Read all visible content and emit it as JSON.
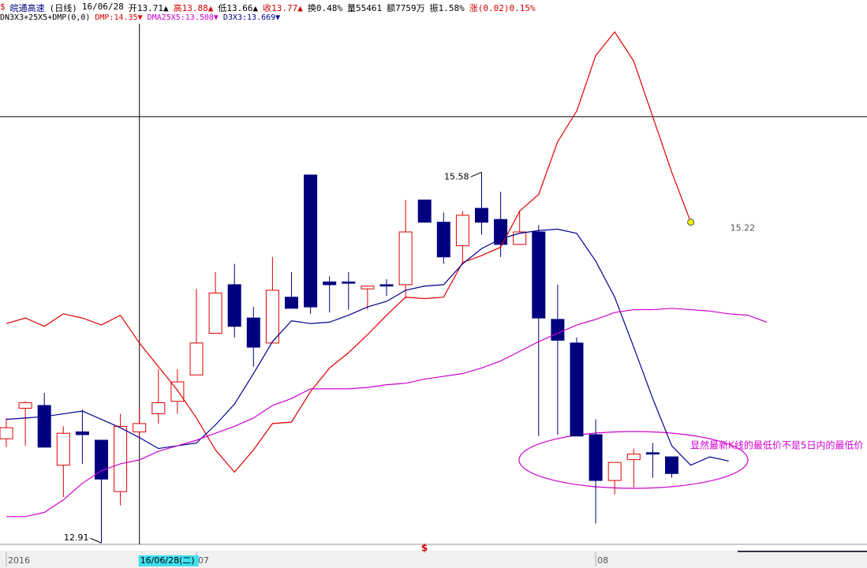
{
  "chart_data": {
    "type": "candlestick",
    "header": [
      {
        "text": "$",
        "color": "#d00000"
      },
      {
        "text": "皖通高速",
        "color": "#000080"
      },
      {
        "text": "(日线)",
        "color": "#000000"
      },
      {
        "text": "16/06/28",
        "color": "#000000"
      },
      {
        "text": "开13.71▲",
        "color": "#000000"
      },
      {
        "text": "高13.88▲",
        "color": "#d00000"
      },
      {
        "text": "低13.66▲",
        "color": "#000000"
      },
      {
        "text": "收13.77▲",
        "color": "#d00000"
      },
      {
        "text": "换0.48%",
        "color": "#000000"
      },
      {
        "text": "量55461",
        "color": "#000000"
      },
      {
        "text": "额7759万",
        "color": "#000000"
      },
      {
        "text": "振1.58%",
        "color": "#000000"
      },
      {
        "text": "涨(0.02)0.15%",
        "color": "#d00000"
      }
    ],
    "indicator_line": [
      {
        "text": "DN3X3+25X5+DMP(0,0)",
        "color": "#000000"
      },
      {
        "text": "DMP:14.35▼",
        "color": "#e00000"
      },
      {
        "text": "DMA25X5:13.508▼",
        "color": "#d000d0"
      },
      {
        "text": "D3X3:13.669▼",
        "color": "#000090"
      }
    ],
    "categories": [
      "2016",
      null,
      null,
      null,
      null,
      null,
      null,
      null,
      null,
      null,
      "07",
      null,
      null,
      null,
      null,
      null,
      null,
      null,
      null,
      null,
      null,
      null,
      null,
      null,
      null,
      null,
      null,
      null,
      null,
      null,
      null,
      "08",
      null,
      null,
      null,
      null,
      null,
      null,
      null,
      null,
      null
    ],
    "ylim": [
      12.9,
      16.65
    ],
    "up_color": "#e00000",
    "down_color": "#00007f",
    "open": [
      13.66,
      13.88,
      13.9,
      13.47,
      13.71,
      13.65,
      13.28,
      13.71,
      13.84,
      13.93,
      14.12,
      14.42,
      14.77,
      14.53,
      14.35,
      14.68,
      15.56,
      14.79,
      14.79,
      14.74,
      14.77,
      14.77,
      15.38,
      15.22,
      15.05,
      15.32,
      15.24,
      15.06,
      15.15,
      14.52,
      14.35,
      13.69,
      13.36,
      13.51,
      13.56,
      13.53,
      null,
      null,
      null,
      null,
      null
    ],
    "high": [
      13.81,
      13.93,
      13.99,
      13.75,
      13.87,
      13.65,
      13.84,
      13.88,
      14.16,
      14.16,
      14.74,
      14.86,
      14.92,
      14.61,
      14.97,
      14.86,
      15.56,
      14.83,
      14.86,
      14.76,
      14.81,
      15.38,
      15.38,
      15.29,
      15.3,
      15.58,
      15.44,
      15.3,
      15.2,
      14.77,
      14.39,
      13.8,
      13.49,
      13.59,
      13.63,
      13.53,
      null,
      null,
      null,
      null,
      null
    ],
    "low": [
      13.6,
      13.61,
      13.6,
      13.24,
      13.48,
      12.91,
      13.18,
      13.66,
      13.77,
      13.84,
      14.12,
      14.42,
      14.39,
      14.18,
      14.35,
      14.6,
      14.56,
      14.57,
      14.59,
      14.59,
      14.69,
      14.67,
      15.22,
      14.92,
      14.93,
      15.13,
      14.97,
      15.06,
      13.68,
      13.69,
      13.68,
      13.05,
      13.26,
      13.31,
      13.38,
      13.38,
      null,
      null,
      null,
      null,
      null
    ],
    "close": [
      13.74,
      13.92,
      13.6,
      13.7,
      13.69,
      13.37,
      13.75,
      13.77,
      13.92,
      14.07,
      14.35,
      14.71,
      14.47,
      14.32,
      14.73,
      14.6,
      14.61,
      14.77,
      14.78,
      14.76,
      14.76,
      15.15,
      15.22,
      14.97,
      15.27,
      15.22,
      15.06,
      15.15,
      14.53,
      14.37,
      13.68,
      13.36,
      13.49,
      13.55,
      13.55,
      13.41,
      null,
      null,
      null,
      null,
      null
    ],
    "series": [
      {
        "name": "DMP",
        "color": "#e00000",
        "end_label": "15.22",
        "values": [
          14.49,
          14.53,
          14.47,
          14.56,
          14.53,
          14.48,
          14.55,
          14.35,
          14.18,
          14.01,
          13.81,
          13.58,
          13.42,
          13.58,
          13.77,
          13.78,
          14.0,
          14.17,
          14.28,
          14.41,
          14.55,
          14.68,
          14.67,
          14.68,
          14.93,
          14.98,
          15.04,
          15.3,
          15.42,
          15.8,
          16.02,
          16.42,
          16.59,
          16.38,
          15.98,
          15.58,
          15.22,
          null,
          null,
          null,
          null
        ]
      },
      {
        "name": "D3X3",
        "color": "#000090",
        "values": [
          13.8,
          13.81,
          13.82,
          13.84,
          13.86,
          13.8,
          13.74,
          13.669,
          13.59,
          13.61,
          13.63,
          13.76,
          13.91,
          14.13,
          14.36,
          14.51,
          14.49,
          14.5,
          14.55,
          14.61,
          14.65,
          14.73,
          14.76,
          14.77,
          14.92,
          15.03,
          15.1,
          15.14,
          15.16,
          15.17,
          15.14,
          14.94,
          14.68,
          14.32,
          13.95,
          13.61,
          13.47,
          13.53,
          13.5,
          null,
          null
        ]
      },
      {
        "name": "DMA25X5",
        "color": "#d000d0",
        "values": [
          13.1,
          13.1,
          13.13,
          13.22,
          13.34,
          13.43,
          13.48,
          13.508,
          13.57,
          13.61,
          13.65,
          13.7,
          13.75,
          13.81,
          13.9,
          13.95,
          14.02,
          14.02,
          14.02,
          14.03,
          14.05,
          14.06,
          14.09,
          14.11,
          14.13,
          14.17,
          14.22,
          14.29,
          14.36,
          14.42,
          14.48,
          14.52,
          14.57,
          14.59,
          14.59,
          14.6,
          14.59,
          14.58,
          14.56,
          14.55,
          14.5
        ]
      }
    ],
    "max_label": {
      "text": "15.58",
      "index": 25
    },
    "min_label": {
      "text": "12.91",
      "index": 5
    },
    "crosshair": {
      "index": 7,
      "value": 15.98,
      "label": "16/06/28(二)"
    },
    "axis_marker": "$",
    "annotation": "显然最新K线的最低价不是5日内的最低价"
  }
}
